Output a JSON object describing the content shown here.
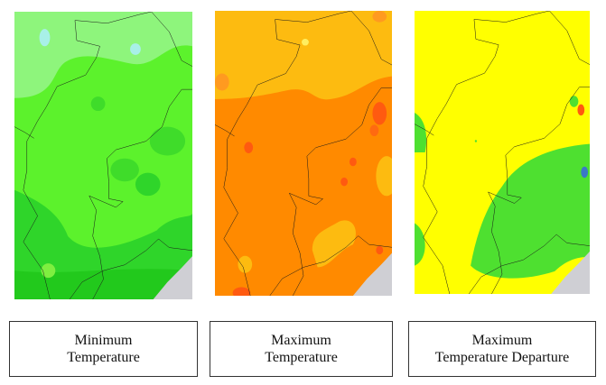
{
  "maps": [
    {
      "caption_line1": "Minimum",
      "caption_line2": "Temperature",
      "base_color": "#5cf22c",
      "cool_color": "#8ef57c",
      "deep_color": "#22d21c"
    },
    {
      "caption_line1": "Maximum",
      "caption_line2": "Temperature",
      "base_color": "#ff8a00",
      "cool_color": "#fdbb10",
      "deep_color": "#ff5a10"
    },
    {
      "caption_line1": "Maximum",
      "caption_line2": "Temperature Departure",
      "base_color": "#ffff00",
      "cool_color": "#4ee030",
      "deep_color": "#3a78c8"
    }
  ],
  "sea_color": "#cfcfd4",
  "boundary_color": "#1a1a1a"
}
